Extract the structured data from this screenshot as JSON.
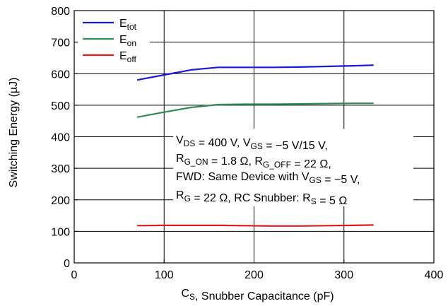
{
  "chart_data": {
    "type": "line",
    "title": "",
    "xlabel": {
      "main": "C",
      "sub": "S",
      "rest": ", Snubber Capacitance (pF)"
    },
    "ylabel": "Switching Energy (µJ)",
    "xlim": [
      0,
      400
    ],
    "ylim": [
      0,
      800
    ],
    "xticks": [
      "0",
      "100",
      "200",
      "300",
      "400"
    ],
    "yticks": [
      "0",
      "100",
      "200",
      "300",
      "400",
      "500",
      "600",
      "700",
      "800"
    ],
    "grid": true,
    "legend_position": "top-left",
    "series": [
      {
        "name": "E",
        "sub": "tot",
        "color": "#1a1adc",
        "x": [
          70,
          100,
          130,
          160,
          190,
          220,
          250,
          280,
          310,
          333
        ],
        "y": [
          580,
          596,
          612,
          620,
          620,
          620,
          621,
          623,
          625,
          627
        ]
      },
      {
        "name": "E",
        "sub": "on",
        "color": "#2e8b57",
        "x": [
          70,
          100,
          130,
          160,
          190,
          220,
          250,
          280,
          310,
          333
        ],
        "y": [
          462,
          478,
          493,
          502,
          503,
          503,
          504,
          505,
          506,
          506
        ]
      },
      {
        "name": "E",
        "sub": "off",
        "color": "#e01b1b",
        "x": [
          70,
          100,
          130,
          160,
          190,
          220,
          250,
          280,
          310,
          333
        ],
        "y": [
          118,
          119,
          119,
          119,
          118,
          117,
          117,
          118,
          119,
          120
        ]
      }
    ],
    "annotation_lines": [
      [
        [
          "V",
          ""
        ],
        [
          "DS",
          "sub"
        ],
        [
          " = 400 V, V",
          ""
        ],
        [
          "GS",
          "sub"
        ],
        [
          " = −5 V/15 V,",
          ""
        ]
      ],
      [
        [
          "R",
          ""
        ],
        [
          "G_ON",
          "sub"
        ],
        [
          " = 1.8 Ω, R",
          ""
        ],
        [
          "G_OFF",
          "sub"
        ],
        [
          " = 22 Ω,",
          ""
        ]
      ],
      [
        [
          "FWD: Same Device with V",
          ""
        ],
        [
          "GS",
          "sub"
        ],
        [
          " = −5 V,",
          ""
        ]
      ],
      [
        [
          "R",
          ""
        ],
        [
          "G",
          "sub"
        ],
        [
          " = 22 Ω, RC Snubber: R",
          ""
        ],
        [
          "S",
          "sub"
        ],
        [
          " = 5 Ω",
          ""
        ]
      ]
    ]
  }
}
